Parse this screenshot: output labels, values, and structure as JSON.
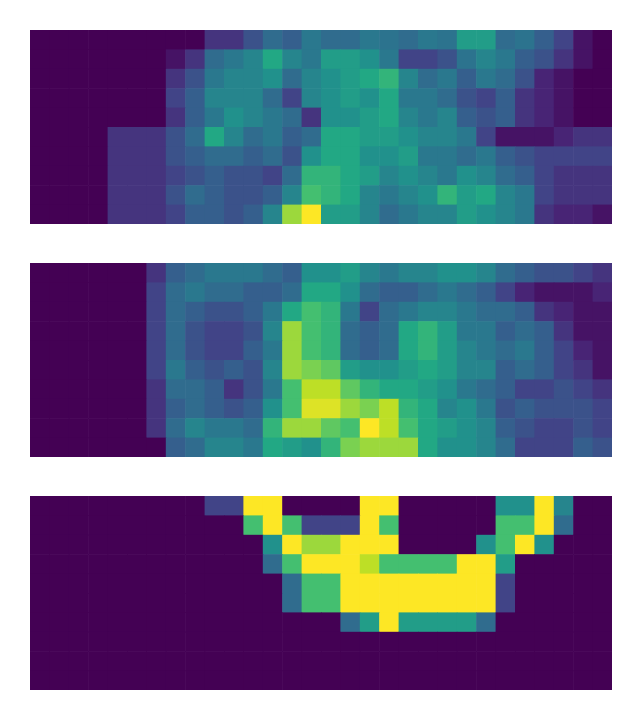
{
  "chart_data": [
    {
      "type": "heatmap",
      "tick_labels": false,
      "color_range": [
        0,
        1
      ],
      "cells": [
        [
          0,
          0,
          0,
          0,
          0,
          0,
          0,
          0,
          0,
          0.15,
          0.15,
          0.25,
          0.35,
          0.3,
          0.4,
          0.35,
          0.35,
          0.4,
          0.38,
          0.35,
          0.4,
          0.38,
          0.55,
          0.55,
          0.35,
          0.38,
          0.3,
          0.2,
          0.05,
          0
        ],
        [
          0,
          0,
          0,
          0,
          0,
          0,
          0,
          0.05,
          0.15,
          0.35,
          0.4,
          0.45,
          0.6,
          0.45,
          0.4,
          0.55,
          0.55,
          0.5,
          0.4,
          0.2,
          0.2,
          0.25,
          0.38,
          0.45,
          0.4,
          0.3,
          0.25,
          0.15,
          0.05,
          0
        ],
        [
          0,
          0,
          0,
          0,
          0,
          0,
          0,
          0.15,
          0.25,
          0.4,
          0.45,
          0.45,
          0.5,
          0.35,
          0.45,
          0.5,
          0.55,
          0.6,
          0.65,
          0.45,
          0.35,
          0.4,
          0.3,
          0.4,
          0.35,
          0.25,
          0.1,
          0.05,
          0,
          0
        ],
        [
          0,
          0,
          0,
          0,
          0,
          0,
          0,
          0.2,
          0.3,
          0.45,
          0.45,
          0.45,
          0.35,
          0.2,
          0.45,
          0.5,
          0.55,
          0.5,
          0.6,
          0.4,
          0.4,
          0.35,
          0.25,
          0.2,
          0.3,
          0.15,
          0.1,
          0.05,
          0,
          0
        ],
        [
          0,
          0,
          0,
          0,
          0,
          0,
          0,
          0.15,
          0.3,
          0.4,
          0.5,
          0.45,
          0.4,
          0.35,
          0.15,
          0.5,
          0.5,
          0.55,
          0.6,
          0.45,
          0.4,
          0.45,
          0.3,
          0.25,
          0.3,
          0.15,
          0.1,
          0.05,
          0,
          0
        ],
        [
          0,
          0,
          0,
          0,
          0.15,
          0.15,
          0.15,
          0.25,
          0.35,
          0.6,
          0.45,
          0.35,
          0.4,
          0.3,
          0.35,
          0.6,
          0.6,
          0.55,
          0.55,
          0.5,
          0.45,
          0.45,
          0.4,
          0.2,
          0.05,
          0.05,
          0.05,
          0.1,
          0.15,
          0.15
        ],
        [
          0,
          0,
          0,
          0,
          0.15,
          0.15,
          0.15,
          0.25,
          0.3,
          0.35,
          0.35,
          0.3,
          0.35,
          0.25,
          0.5,
          0.6,
          0.6,
          0.5,
          0.5,
          0.55,
          0.4,
          0.4,
          0.35,
          0.4,
          0.3,
          0.25,
          0.2,
          0.2,
          0.2,
          0.2
        ],
        [
          0,
          0,
          0,
          0,
          0.15,
          0.15,
          0.15,
          0.2,
          0.25,
          0.3,
          0.25,
          0.25,
          0.2,
          0.35,
          0.65,
          0.65,
          0.6,
          0.55,
          0.45,
          0.5,
          0.45,
          0.4,
          0.5,
          0.45,
          0.35,
          0.3,
          0.2,
          0.15,
          0.15,
          0.15
        ],
        [
          0,
          0,
          0,
          0,
          0.15,
          0.15,
          0.15,
          0.25,
          0.35,
          0.3,
          0.25,
          0.25,
          0.3,
          0.45,
          0.7,
          0.65,
          0.6,
          0.45,
          0.4,
          0.45,
          0.5,
          0.65,
          0.55,
          0.6,
          0.45,
          0.4,
          0.2,
          0.15,
          0.15,
          0.15
        ],
        [
          0,
          0,
          0,
          0,
          0.15,
          0.15,
          0.15,
          0.2,
          0.3,
          0.3,
          0.25,
          0.3,
          0.45,
          0.85,
          1,
          0.55,
          0.55,
          0.45,
          0.35,
          0.4,
          0.45,
          0.45,
          0.55,
          0.5,
          0.45,
          0.4,
          0.15,
          0.1,
          0.1,
          0.05
        ]
      ]
    },
    {
      "type": "heatmap",
      "tick_labels": false,
      "color_range": [
        0,
        1
      ],
      "cells": [
        [
          0,
          0,
          0,
          0,
          0,
          0,
          0.15,
          0.3,
          0.35,
          0.4,
          0.4,
          0.4,
          0.35,
          0.3,
          0.5,
          0.5,
          0.55,
          0.45,
          0.4,
          0.45,
          0.45,
          0.5,
          0.5,
          0.45,
          0.35,
          0.3,
          0.25,
          0.25,
          0.2,
          0.15
        ],
        [
          0,
          0,
          0,
          0,
          0,
          0,
          0.2,
          0.35,
          0.4,
          0.35,
          0.35,
          0.3,
          0.3,
          0.35,
          0.6,
          0.6,
          0.5,
          0.35,
          0.3,
          0.3,
          0.35,
          0.4,
          0.35,
          0.3,
          0.2,
          0.1,
          0.05,
          0.05,
          0.05,
          0.1
        ],
        [
          0,
          0,
          0,
          0,
          0,
          0,
          0.2,
          0.35,
          0.3,
          0.25,
          0.25,
          0.3,
          0.4,
          0.6,
          0.7,
          0.65,
          0.4,
          0.2,
          0.35,
          0.4,
          0.45,
          0.45,
          0.4,
          0.35,
          0.35,
          0.3,
          0.15,
          0.1,
          0.05,
          0.05
        ],
        [
          0,
          0,
          0,
          0,
          0,
          0,
          0.2,
          0.35,
          0.25,
          0.2,
          0.2,
          0.25,
          0.45,
          0.85,
          0.7,
          0.65,
          0.35,
          0.3,
          0.35,
          0.6,
          0.65,
          0.55,
          0.4,
          0.4,
          0.3,
          0.35,
          0.3,
          0.15,
          0.05,
          0.05
        ],
        [
          0,
          0,
          0,
          0,
          0,
          0,
          0.2,
          0.35,
          0.25,
          0.2,
          0.2,
          0.3,
          0.4,
          0.85,
          0.7,
          0.65,
          0.35,
          0.3,
          0.35,
          0.6,
          0.65,
          0.55,
          0.45,
          0.4,
          0.35,
          0.4,
          0.3,
          0.2,
          0.1,
          0.05
        ],
        [
          0,
          0,
          0,
          0,
          0,
          0,
          0.2,
          0.4,
          0.3,
          0.25,
          0.3,
          0.25,
          0.45,
          0.85,
          0.8,
          0.75,
          0.55,
          0.5,
          0.5,
          0.55,
          0.6,
          0.55,
          0.45,
          0.45,
          0.3,
          0.35,
          0.3,
          0.2,
          0.15,
          0.05
        ],
        [
          0,
          0,
          0,
          0,
          0,
          0,
          0.15,
          0.35,
          0.35,
          0.3,
          0.15,
          0.25,
          0.4,
          0.7,
          0.9,
          0.9,
          0.75,
          0.65,
          0.6,
          0.6,
          0.55,
          0.5,
          0.4,
          0.35,
          0.3,
          0.2,
          0.2,
          0.25,
          0.2,
          0.15
        ],
        [
          0,
          0,
          0,
          0,
          0,
          0,
          0.15,
          0.3,
          0.35,
          0.3,
          0.25,
          0.3,
          0.5,
          0.7,
          0.95,
          0.95,
          0.85,
          0.8,
          0.9,
          0.65,
          0.6,
          0.45,
          0.5,
          0.4,
          0.25,
          0.3,
          0.25,
          0.25,
          0.25,
          0.2
        ],
        [
          0,
          0,
          0,
          0,
          0,
          0,
          0.15,
          0.35,
          0.45,
          0.4,
          0.4,
          0.35,
          0.65,
          0.85,
          0.85,
          0.75,
          0.7,
          1,
          0.9,
          0.7,
          0.6,
          0.55,
          0.5,
          0.45,
          0.3,
          0.25,
          0.2,
          0.2,
          0.25,
          0.2
        ],
        [
          0,
          0,
          0,
          0,
          0,
          0,
          0,
          0.3,
          0.35,
          0.45,
          0.45,
          0.4,
          0.6,
          0.55,
          0.5,
          0.65,
          0.8,
          0.85,
          0.85,
          0.85,
          0.6,
          0.5,
          0.5,
          0.45,
          0.35,
          0.2,
          0.2,
          0.2,
          0.3,
          0.25
        ]
      ]
    },
    {
      "type": "heatmap",
      "tick_labels": false,
      "color_range": [
        0,
        1
      ],
      "cells": [
        [
          0,
          0,
          0,
          0,
          0,
          0,
          0,
          0,
          0,
          0.2,
          0.2,
          1,
          1,
          0,
          0,
          0,
          0,
          1,
          1,
          0,
          0,
          0,
          0,
          0,
          0.5,
          0.5,
          1,
          0.45,
          0,
          0
        ],
        [
          0,
          0,
          0,
          0,
          0,
          0,
          0,
          0,
          0,
          0,
          0,
          0.7,
          1,
          0.7,
          0.2,
          0.2,
          0.2,
          1,
          0.7,
          0,
          0,
          0,
          0,
          0,
          0.7,
          0.7,
          1,
          0.35,
          0,
          0
        ],
        [
          0,
          0,
          0,
          0,
          0,
          0,
          0,
          0,
          0,
          0,
          0,
          0,
          0.5,
          1,
          0.85,
          0.85,
          1,
          1,
          1,
          0,
          0,
          0,
          0,
          0.5,
          0.7,
          1,
          0.5,
          0,
          0,
          0
        ],
        [
          0,
          0,
          0,
          0,
          0,
          0,
          0,
          0,
          0,
          0,
          0,
          0,
          0.35,
          0.7,
          1,
          1,
          1,
          0.9,
          0.7,
          0.7,
          0.7,
          0.7,
          1,
          1,
          0.55,
          0,
          0,
          0,
          0,
          0
        ],
        [
          0,
          0,
          0,
          0,
          0,
          0,
          0,
          0,
          0,
          0,
          0,
          0,
          0,
          0.35,
          0.7,
          0.7,
          1,
          1,
          1,
          1,
          1,
          1,
          1,
          1,
          0.2,
          0,
          0,
          0,
          0,
          0
        ],
        [
          0,
          0,
          0,
          0,
          0,
          0,
          0,
          0,
          0,
          0,
          0,
          0,
          0,
          0.35,
          0.7,
          0.7,
          1,
          1,
          1,
          1,
          1,
          1,
          1,
          1,
          0.2,
          0,
          0,
          0,
          0,
          0
        ],
        [
          0,
          0,
          0,
          0,
          0,
          0,
          0,
          0,
          0,
          0,
          0,
          0,
          0,
          0,
          0,
          0,
          0.35,
          0.55,
          1,
          0.55,
          0.55,
          0.55,
          0.55,
          0.35,
          0,
          0,
          0,
          0,
          0,
          0
        ],
        [
          0,
          0,
          0,
          0,
          0,
          0,
          0,
          0,
          0,
          0,
          0,
          0,
          0,
          0,
          0,
          0,
          0,
          0,
          0,
          0,
          0,
          0,
          0,
          0,
          0,
          0,
          0,
          0,
          0,
          0
        ],
        [
          0,
          0,
          0,
          0,
          0,
          0,
          0,
          0,
          0,
          0,
          0,
          0,
          0,
          0,
          0,
          0,
          0,
          0,
          0,
          0,
          0,
          0,
          0,
          0,
          0,
          0,
          0,
          0,
          0,
          0
        ],
        [
          0,
          0,
          0,
          0,
          0,
          0,
          0,
          0,
          0,
          0,
          0,
          0,
          0,
          0,
          0,
          0,
          0,
          0,
          0,
          0,
          0,
          0,
          0,
          0,
          0,
          0,
          0,
          0,
          0,
          0
        ]
      ]
    }
  ]
}
